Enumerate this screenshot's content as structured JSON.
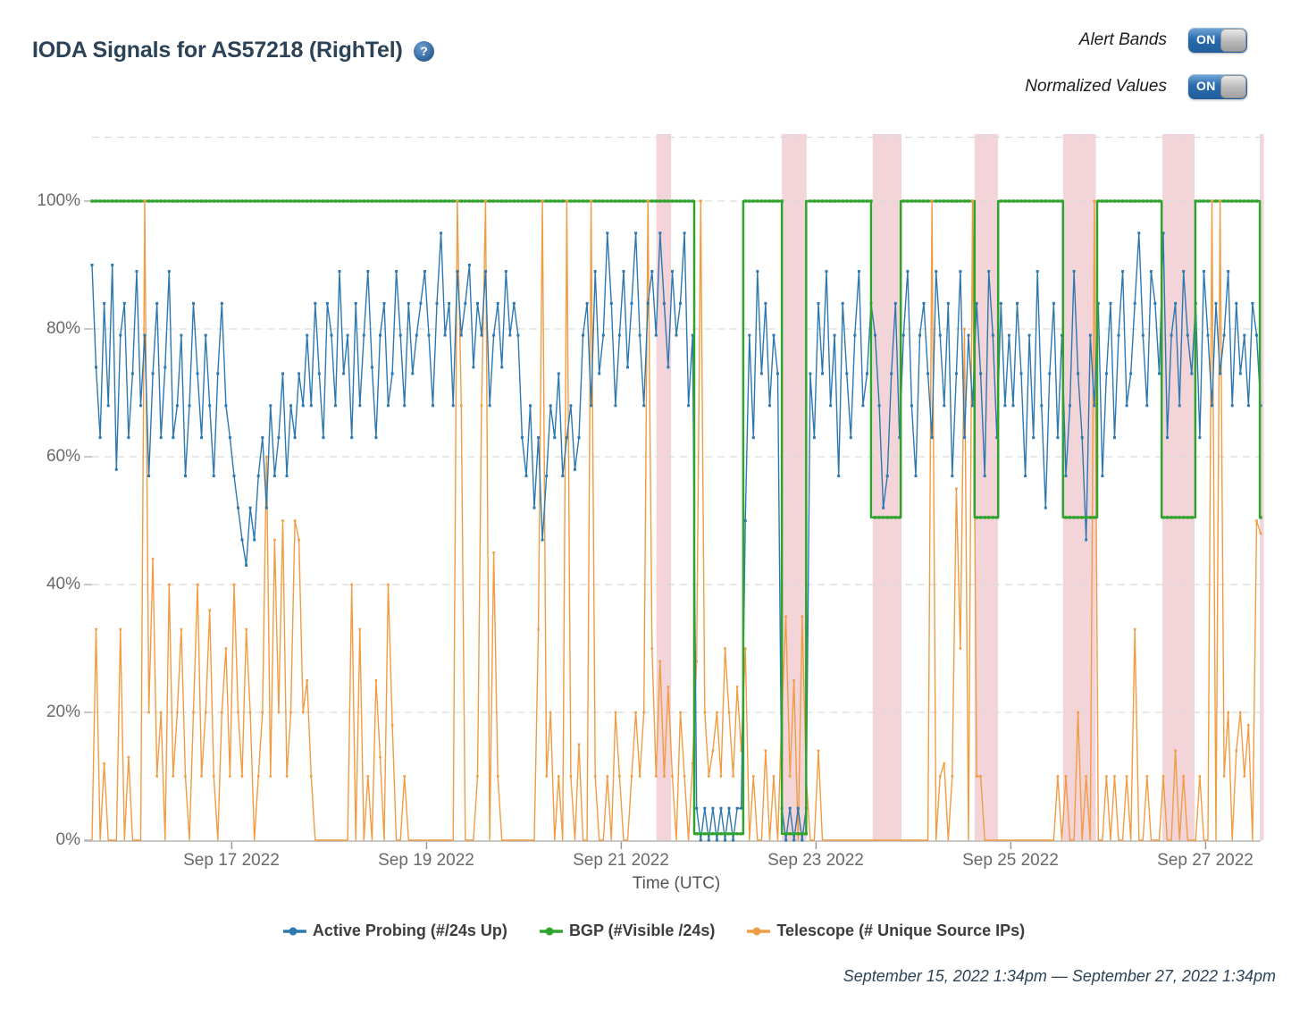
{
  "header": {
    "title": "IODA Signals for AS57218 (RighTel)",
    "help": "?"
  },
  "controls": [
    {
      "label": "Alert Bands",
      "state": "ON"
    },
    {
      "label": "Normalized Values",
      "state": "ON"
    }
  ],
  "footer": {
    "time_range": "September 15, 2022 1:34pm — September 27, 2022 1:34pm"
  },
  "chart_data": {
    "type": "line",
    "title": "IODA Signals for AS57218 (RighTel)",
    "xlabel": "Time (UTC)",
    "x_hours_total": 288,
    "ylim": [
      0,
      110
    ],
    "grid": "dashed",
    "legend_position": "bottom",
    "yticks": [
      {
        "value": 0,
        "label": "0%"
      },
      {
        "value": 20,
        "label": "20%"
      },
      {
        "value": 40,
        "label": "40%"
      },
      {
        "value": 60,
        "label": "60%"
      },
      {
        "value": 80,
        "label": "80%"
      },
      {
        "value": 100,
        "label": "100%"
      }
    ],
    "xticks": [
      {
        "hour": 34.43,
        "label": "Sep 17 2022"
      },
      {
        "hour": 82.43,
        "label": "Sep 19 2022"
      },
      {
        "hour": 130.43,
        "label": "Sep 21 2022"
      },
      {
        "hour": 178.43,
        "label": "Sep 23 2022"
      },
      {
        "hour": 226.43,
        "label": "Sep 25 2022"
      },
      {
        "hour": 274.43,
        "label": "Sep 27 2022"
      }
    ],
    "alert_bands": {
      "color": "#f3d4d9",
      "ranges_hours": [
        [
          139.1,
          142.7
        ],
        [
          170.0,
          176.1
        ],
        [
          192.4,
          199.5
        ],
        [
          217.5,
          223.3
        ],
        [
          239.3,
          247.4
        ],
        [
          263.8,
          271.7
        ],
        [
          287.8,
          288.8
        ]
      ]
    },
    "series": [
      {
        "name": "Active Probing (#/24s Up)",
        "color": "#2e78b0",
        "type": "line",
        "step_hours": 1,
        "start_hour": 0,
        "values": [
          90,
          74,
          63,
          84,
          68,
          90,
          58,
          79,
          84,
          63,
          73,
          89,
          68,
          79,
          57,
          73,
          84,
          63,
          74,
          89,
          63,
          68,
          79,
          57,
          68,
          84,
          73,
          63,
          79,
          68,
          57,
          73,
          84,
          68,
          63,
          57,
          52,
          47,
          43,
          52,
          47,
          57,
          63,
          52,
          68,
          57,
          63,
          73,
          57,
          68,
          63,
          73,
          68,
          79,
          68,
          84,
          73,
          63,
          84,
          79,
          68,
          89,
          73,
          79,
          63,
          84,
          68,
          79,
          89,
          74,
          63,
          79,
          84,
          68,
          73,
          89,
          79,
          68,
          84,
          73,
          79,
          84,
          89,
          79,
          68,
          84,
          95,
          79,
          84,
          68,
          89,
          79,
          84,
          90,
          74,
          84,
          79,
          89,
          68,
          79,
          84,
          74,
          89,
          79,
          84,
          79,
          63,
          57,
          68,
          52,
          63,
          47,
          57,
          68,
          63,
          73,
          57,
          63,
          68,
          58,
          63,
          79,
          84,
          68,
          89,
          73,
          79,
          95,
          84,
          68,
          79,
          89,
          74,
          84,
          95,
          79,
          68,
          84,
          89,
          79,
          95,
          84,
          74,
          89,
          79,
          84,
          95,
          68,
          79,
          5,
          0,
          5,
          0,
          5,
          0,
          5,
          0,
          5,
          0,
          5,
          5,
          50,
          79,
          63,
          89,
          73,
          84,
          68,
          79,
          73,
          5,
          0,
          5,
          0,
          5,
          0,
          5,
          73,
          63,
          84,
          73,
          89,
          68,
          79,
          57,
          84,
          73,
          63,
          79,
          89,
          68,
          73,
          84,
          79,
          68,
          52,
          57,
          73,
          84,
          63,
          79,
          89,
          68,
          57,
          79,
          84,
          73,
          63,
          89,
          79,
          68,
          84,
          57,
          73,
          89,
          63,
          79,
          68,
          84,
          73,
          57,
          89,
          79,
          63,
          84,
          68,
          79,
          68,
          84,
          73,
          57,
          79,
          63,
          89,
          68,
          52,
          73,
          84,
          63,
          79,
          57,
          68,
          89,
          73,
          63,
          47,
          79,
          68,
          84,
          57,
          73,
          84,
          63,
          79,
          89,
          68,
          73,
          84,
          95,
          79,
          68,
          89,
          84,
          73,
          95,
          63,
          79,
          84,
          68,
          89,
          79,
          73,
          84,
          63,
          89,
          79,
          68,
          84,
          73,
          79,
          89,
          68,
          84,
          73,
          79,
          68,
          84,
          79,
          68
        ]
      },
      {
        "name": "BGP (#Visible /24s)",
        "color": "#2fa32c",
        "type": "step",
        "segments_hours": [
          [
            0,
            148.4,
            100
          ],
          [
            148.4,
            160.5,
            1
          ],
          [
            160.5,
            170,
            100
          ],
          [
            170,
            176,
            1
          ],
          [
            176,
            192,
            100
          ],
          [
            192,
            199.3,
            50.5
          ],
          [
            199.3,
            217.5,
            100
          ],
          [
            217.5,
            223.3,
            50.5
          ],
          [
            223.3,
            239.3,
            100
          ],
          [
            239.3,
            247.7,
            50.5
          ],
          [
            247.7,
            263.6,
            100
          ],
          [
            263.6,
            271.9,
            50.5
          ],
          [
            271.9,
            287.8,
            100
          ],
          [
            287.8,
            288,
            50.5
          ]
        ]
      },
      {
        "name": "Telescope (# Unique Source IPs)",
        "color": "#f09c42",
        "type": "line",
        "step_hours": 1,
        "start_hour": 0,
        "values": [
          0,
          33,
          0,
          12,
          0,
          0,
          0,
          33,
          0,
          13,
          0,
          0,
          0,
          100,
          20,
          44,
          10,
          20,
          0,
          40,
          10,
          20,
          33,
          10,
          0,
          20,
          40,
          10,
          20,
          36,
          10,
          0,
          20,
          30,
          10,
          40,
          20,
          10,
          33,
          20,
          0,
          10,
          20,
          60,
          10,
          47,
          20,
          50,
          10,
          20,
          50,
          47,
          20,
          25,
          10,
          0,
          0,
          0,
          0,
          0,
          0,
          0,
          0,
          0,
          40,
          0,
          33,
          0,
          10,
          0,
          25,
          13,
          0,
          40,
          18,
          0,
          0,
          10,
          0,
          0,
          0,
          0,
          0,
          0,
          0,
          0,
          0,
          0,
          0,
          0,
          100,
          68,
          0,
          0,
          0,
          10,
          68,
          100,
          0,
          45,
          10,
          0,
          0,
          0,
          0,
          0,
          0,
          0,
          0,
          0,
          33,
          100,
          10,
          20,
          0,
          10,
          0,
          100,
          10,
          0,
          15,
          0,
          0,
          100,
          10,
          0,
          0,
          10,
          0,
          20,
          10,
          0,
          0,
          10,
          20,
          10,
          20,
          100,
          30,
          10,
          28,
          10,
          24,
          10,
          0,
          20,
          10,
          0,
          12,
          28,
          100,
          20,
          10,
          14,
          20,
          10,
          30,
          20,
          10,
          24,
          14,
          30,
          0,
          10,
          0,
          0,
          14,
          0,
          10,
          0,
          20,
          35,
          10,
          25,
          0,
          35,
          10,
          0,
          0,
          14,
          0,
          0,
          0,
          0,
          0,
          0,
          0,
          0,
          0,
          0,
          0,
          0,
          0,
          0,
          0,
          0,
          0,
          0,
          0,
          0,
          0,
          0,
          0,
          0,
          0,
          0,
          0,
          100,
          0,
          10,
          12,
          0,
          10,
          55,
          30,
          80,
          0,
          100,
          10,
          10,
          0,
          0,
          0,
          0,
          0,
          0,
          0,
          0,
          0,
          0,
          0,
          0,
          0,
          0,
          0,
          0,
          0,
          0,
          10,
          0,
          10,
          0,
          0,
          20,
          0,
          10,
          0,
          100,
          0,
          0,
          10,
          0,
          10,
          0,
          0,
          10,
          0,
          33,
          0,
          0,
          10,
          0,
          0,
          0,
          10,
          0,
          0,
          14,
          0,
          10,
          0,
          0,
          0,
          10,
          0,
          0,
          100,
          0,
          100,
          10,
          20,
          0,
          14,
          20,
          10,
          18,
          0,
          50,
          48
        ]
      }
    ]
  }
}
